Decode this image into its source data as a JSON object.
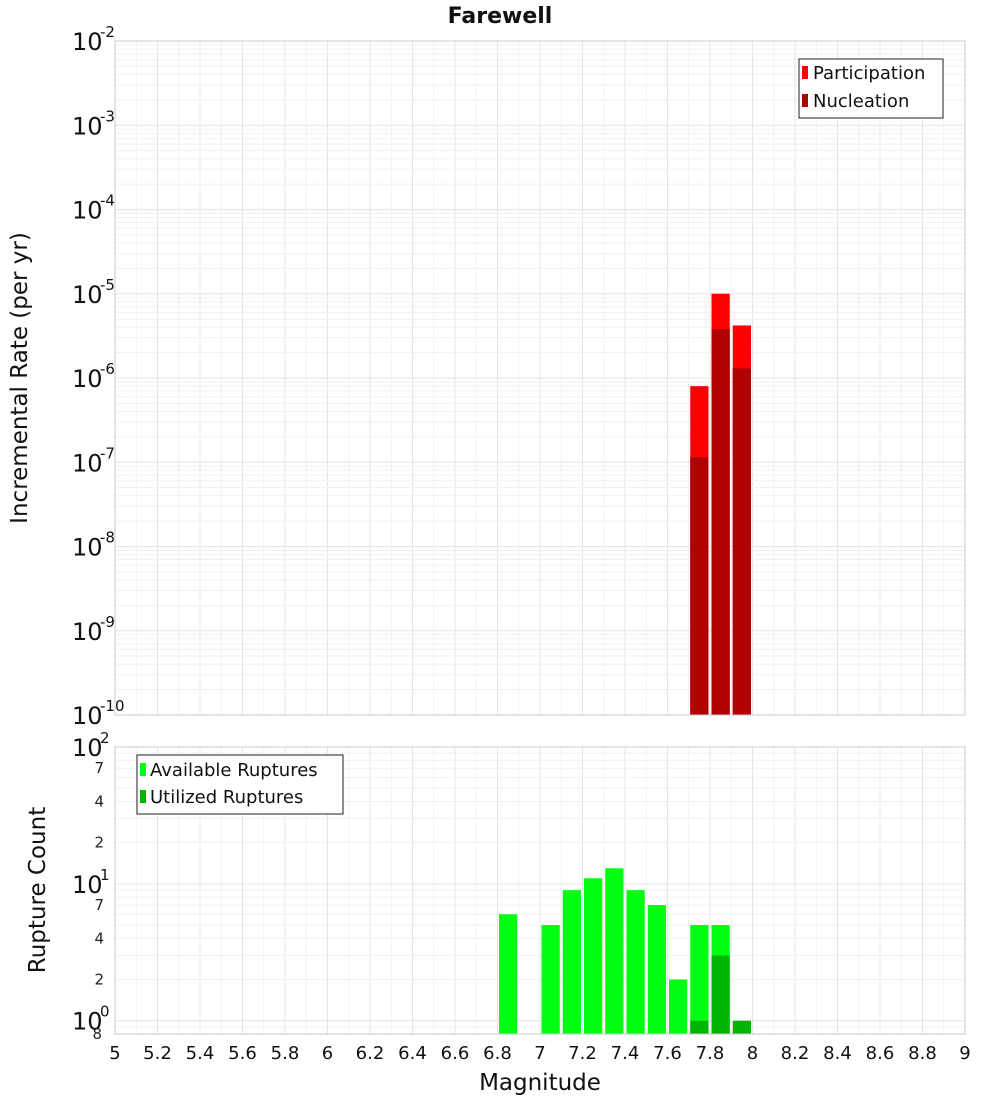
{
  "chart_data": [
    {
      "type": "bar",
      "title": "Farewell",
      "ylabel": "Incremental Rate (per yr)",
      "xlabel": "",
      "yscale": "log",
      "ylim": [
        1e-10,
        0.01
      ],
      "xlim": [
        5,
        9
      ],
      "y_ticks": [
        {
          "base": "10",
          "exp": "-2",
          "value": 0.01
        },
        {
          "base": "10",
          "exp": "-3",
          "value": 0.001
        },
        {
          "base": "10",
          "exp": "-4",
          "value": 0.0001
        },
        {
          "base": "10",
          "exp": "-5",
          "value": 1e-05
        },
        {
          "base": "10",
          "exp": "-6",
          "value": 1e-06
        },
        {
          "base": "10",
          "exp": "-7",
          "value": 1e-07
        },
        {
          "base": "10",
          "exp": "-8",
          "value": 1e-08
        },
        {
          "base": "10",
          "exp": "-9",
          "value": 1e-09
        },
        {
          "base": "10",
          "exp": "-10",
          "value": 1e-10
        }
      ],
      "legend": {
        "position": "top-right",
        "entries": [
          {
            "label": "Participation",
            "color": "#ff0000"
          },
          {
            "label": "Nucleation",
            "color": "#b00000"
          }
        ]
      },
      "series": [
        {
          "name": "Participation",
          "color": "#ff0000",
          "x": [
            7.75,
            7.85,
            7.95
          ],
          "values": [
            8e-07,
            1e-05,
            4.2e-06
          ]
        },
        {
          "name": "Nucleation",
          "color": "#b00000",
          "x": [
            7.75,
            7.85,
            7.95
          ],
          "values": [
            1.15e-07,
            3.8e-06,
            1.3e-06
          ]
        }
      ]
    },
    {
      "type": "bar",
      "title": "",
      "ylabel": "Rupture Count",
      "xlabel": "Magnitude",
      "yscale": "log",
      "ylim": [
        0.8,
        100
      ],
      "xlim": [
        5,
        9
      ],
      "x_ticks": [
        "5",
        "5.2",
        "5.4",
        "5.6",
        "5.8",
        "6",
        "6.2",
        "6.4",
        "6.6",
        "6.8",
        "7",
        "7.2",
        "7.4",
        "7.6",
        "7.8",
        "8",
        "8.2",
        "8.4",
        "8.6",
        "8.8",
        "9"
      ],
      "y_major_ticks": [
        {
          "base": "10",
          "exp": "2",
          "value": 100
        },
        {
          "base": "10",
          "exp": "1",
          "value": 10
        },
        {
          "base": "10",
          "exp": "0",
          "value": 1
        }
      ],
      "y_minor_ticks": [
        {
          "label": "7",
          "value": 70
        },
        {
          "label": "4",
          "value": 40
        },
        {
          "label": "2",
          "value": 20
        },
        {
          "label": "7",
          "value": 7
        },
        {
          "label": "4",
          "value": 4
        },
        {
          "label": "2",
          "value": 2
        },
        {
          "label": "8",
          "value": 0.8
        }
      ],
      "legend": {
        "position": "top-left",
        "entries": [
          {
            "label": "Available Ruptures",
            "color": "#00ff10"
          },
          {
            "label": "Utilized Ruptures",
            "color": "#00b400"
          }
        ]
      },
      "series": [
        {
          "name": "Available Ruptures",
          "color": "#00ff10",
          "x": [
            6.85,
            7.05,
            7.15,
            7.25,
            7.35,
            7.45,
            7.55,
            7.65,
            7.75,
            7.85
          ],
          "values": [
            6,
            5,
            9,
            11,
            13,
            9,
            7,
            2,
            5,
            5
          ]
        },
        {
          "name": "Utilized Ruptures",
          "color": "#00b400",
          "x": [
            7.75,
            7.85,
            7.95
          ],
          "values": [
            1,
            3,
            1
          ]
        }
      ]
    }
  ]
}
